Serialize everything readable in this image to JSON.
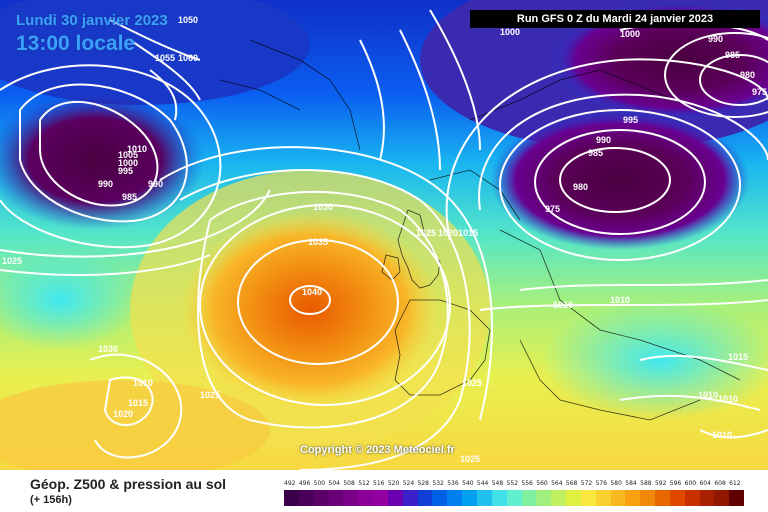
{
  "header": {
    "date": "Lundi 30 janvier 2023",
    "time": "13:00 locale",
    "run": "Run GFS 0 Z du Mardi 24 janvier 2023"
  },
  "footer": {
    "title": "Géop. Z500 & pression au sol",
    "subtitle": "(+ 156h)",
    "copyright": "Copyright © 2023 Meteociel.fr"
  },
  "legend": {
    "values": [
      492,
      496,
      500,
      504,
      508,
      512,
      516,
      520,
      524,
      528,
      532,
      536,
      540,
      544,
      548,
      552,
      556,
      560,
      564,
      568,
      572,
      576,
      580,
      584,
      588,
      592,
      596,
      600,
      604,
      608,
      612
    ],
    "colors": [
      "#3a004a",
      "#4a005a",
      "#5a0068",
      "#6a0078",
      "#7a0088",
      "#8a0098",
      "#9400a0",
      "#6a00b0",
      "#3a20c8",
      "#1040d8",
      "#0060e8",
      "#0080f0",
      "#00a0f0",
      "#20c0f0",
      "#40e0e8",
      "#60f0d0",
      "#80f0a0",
      "#a0f080",
      "#c0f060",
      "#e0f040",
      "#f8e840",
      "#f8d030",
      "#f8b820",
      "#f8a010",
      "#f08808",
      "#e86800",
      "#e04800",
      "#c83000",
      "#a82000",
      "#901800",
      "#600000"
    ]
  },
  "isobar_labels": [
    {
      "text": "1055"
    },
    {
      "text": "1060"
    },
    {
      "text": "1050"
    },
    {
      "text": "1010"
    },
    {
      "text": "1005"
    },
    {
      "text": "1000"
    },
    {
      "text": "995"
    },
    {
      "text": "990"
    },
    {
      "text": "985"
    },
    {
      "text": "990"
    },
    {
      "text": "1025"
    },
    {
      "text": "1030"
    },
    {
      "text": "1035"
    },
    {
      "text": "1040"
    },
    {
      "text": "1030"
    },
    {
      "text": "1010"
    },
    {
      "text": "1015"
    },
    {
      "text": "1020"
    },
    {
      "text": "1025"
    },
    {
      "text": "1025"
    },
    {
      "text": "1020"
    },
    {
      "text": "1015"
    },
    {
      "text": "1025"
    },
    {
      "text": "1025"
    },
    {
      "text": "1000"
    },
    {
      "text": "1000"
    },
    {
      "text": "990"
    },
    {
      "text": "985"
    },
    {
      "text": "980"
    },
    {
      "text": "975"
    },
    {
      "text": "995"
    },
    {
      "text": "990"
    },
    {
      "text": "985"
    },
    {
      "text": "980"
    },
    {
      "text": "975"
    },
    {
      "text": "1010"
    },
    {
      "text": "1010"
    },
    {
      "text": "1015"
    },
    {
      "text": "1010"
    },
    {
      "text": "1010"
    },
    {
      "text": "1010"
    }
  ]
}
